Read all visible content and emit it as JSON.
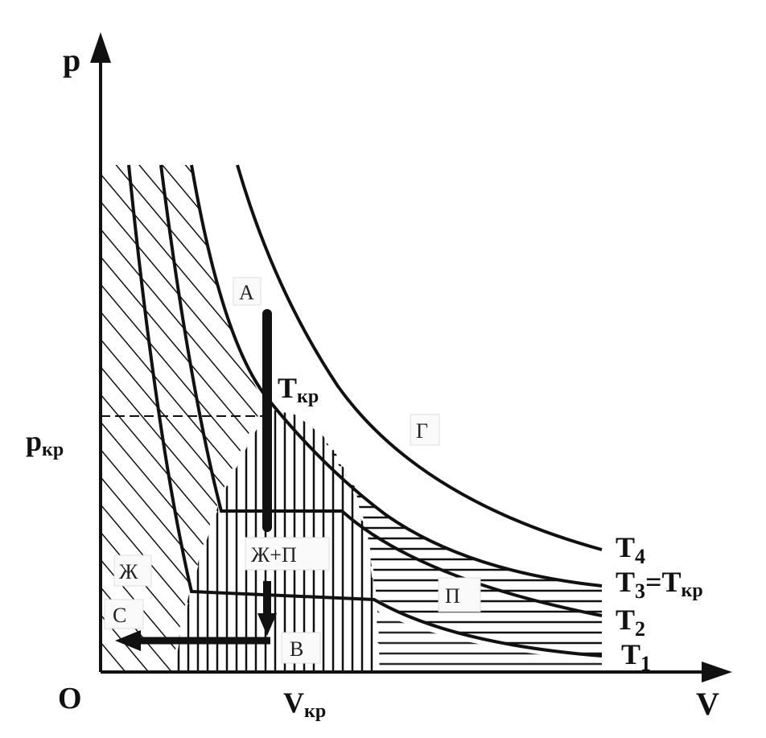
{
  "axes": {
    "y_label": "p",
    "x_label": "V",
    "origin_label": "O",
    "p_critical": {
      "main": "p",
      "sub": "кр"
    },
    "v_critical": {
      "main": "V",
      "sub": "кр"
    }
  },
  "isotherms": [
    {
      "main": "T",
      "sub": "4"
    },
    {
      "main": "T",
      "sub": "3",
      "suffix": "=T",
      "suffix_sub": "кр"
    },
    {
      "main": "T",
      "sub": "2"
    },
    {
      "main": "T",
      "sub": "1"
    }
  ],
  "critical_point": {
    "main": "T",
    "sub": "кр"
  },
  "region_labels": {
    "a": "А",
    "gas": "Г",
    "liquid_vapor": "Ж+П",
    "liquid": "Ж",
    "c": "С",
    "b": "В",
    "vapor": "П"
  },
  "colors": {
    "ink": "#111111",
    "background": "#ffffff"
  }
}
